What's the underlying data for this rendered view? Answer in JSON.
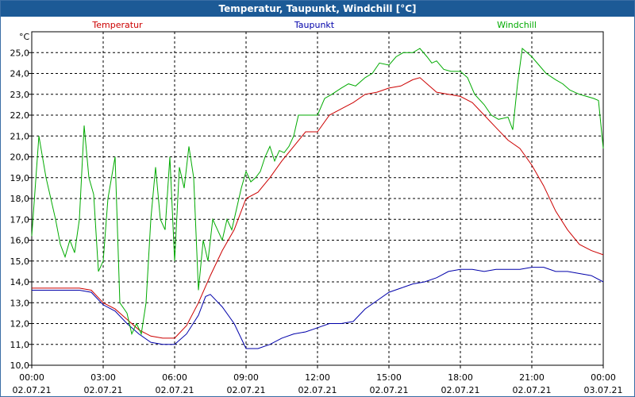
{
  "chart_data": {
    "type": "line",
    "title": "Temperatur, Taupunkt, Windchill [°C]",
    "ylabel": "°C",
    "ylim": [
      10.0,
      26.0
    ],
    "xlim": [
      0,
      24
    ],
    "yticks": [
      "10,0",
      "11,0",
      "12,0",
      "13,0",
      "14,0",
      "15,0",
      "16,0",
      "17,0",
      "18,0",
      "19,0",
      "20,0",
      "21,0",
      "22,0",
      "23,0",
      "24,0",
      "25,0"
    ],
    "xticks": [
      {
        "time": "00:00",
        "date": "02.07.21"
      },
      {
        "time": "03:00",
        "date": "02.07.21"
      },
      {
        "time": "06:00",
        "date": "02.07.21"
      },
      {
        "time": "09:00",
        "date": "02.07.21"
      },
      {
        "time": "12:00",
        "date": "02.07.21"
      },
      {
        "time": "15:00",
        "date": "02.07.21"
      },
      {
        "time": "18:00",
        "date": "02.07.21"
      },
      {
        "time": "21:00",
        "date": "02.07.21"
      },
      {
        "time": "00:00",
        "date": "03.07.21"
      }
    ],
    "grid": true,
    "series": [
      {
        "name": "Temperatur",
        "color": "#cc0000",
        "points": [
          [
            0,
            13.7
          ],
          [
            1,
            13.7
          ],
          [
            2,
            13.7
          ],
          [
            2.5,
            13.6
          ],
          [
            3,
            13.0
          ],
          [
            3.5,
            12.7
          ],
          [
            4,
            12.2
          ],
          [
            4.5,
            11.7
          ],
          [
            5,
            11.4
          ],
          [
            5.5,
            11.3
          ],
          [
            6,
            11.3
          ],
          [
            6.5,
            11.9
          ],
          [
            7,
            13.0
          ],
          [
            7.5,
            14.3
          ],
          [
            8,
            15.5
          ],
          [
            8.5,
            16.5
          ],
          [
            9,
            18.0
          ],
          [
            9.5,
            18.3
          ],
          [
            10,
            19.0
          ],
          [
            10.5,
            19.8
          ],
          [
            11,
            20.5
          ],
          [
            11.5,
            21.2
          ],
          [
            12,
            21.2
          ],
          [
            12.5,
            22.0
          ],
          [
            13,
            22.3
          ],
          [
            13.5,
            22.6
          ],
          [
            14,
            23.0
          ],
          [
            14.5,
            23.1
          ],
          [
            15,
            23.3
          ],
          [
            15.5,
            23.4
          ],
          [
            16,
            23.7
          ],
          [
            16.3,
            23.8
          ],
          [
            17,
            23.1
          ],
          [
            17.5,
            23.0
          ],
          [
            18,
            22.9
          ],
          [
            18.5,
            22.6
          ],
          [
            19,
            22.0
          ],
          [
            19.5,
            21.4
          ],
          [
            20,
            20.8
          ],
          [
            20.5,
            20.4
          ],
          [
            21,
            19.6
          ],
          [
            21.5,
            18.6
          ],
          [
            22,
            17.4
          ],
          [
            22.5,
            16.5
          ],
          [
            23,
            15.8
          ],
          [
            23.5,
            15.5
          ],
          [
            24,
            15.3
          ]
        ]
      },
      {
        "name": "Taupunkt",
        "color": "#0000aa",
        "points": [
          [
            0,
            13.6
          ],
          [
            1,
            13.6
          ],
          [
            2,
            13.6
          ],
          [
            2.5,
            13.5
          ],
          [
            3,
            12.9
          ],
          [
            3.5,
            12.6
          ],
          [
            4,
            12.0
          ],
          [
            4.5,
            11.5
          ],
          [
            5,
            11.1
          ],
          [
            5.5,
            11.0
          ],
          [
            6,
            11.0
          ],
          [
            6.5,
            11.5
          ],
          [
            7,
            12.4
          ],
          [
            7.3,
            13.3
          ],
          [
            7.5,
            13.4
          ],
          [
            8,
            12.8
          ],
          [
            8.5,
            12.0
          ],
          [
            9,
            10.8
          ],
          [
            9.5,
            10.8
          ],
          [
            10,
            11.0
          ],
          [
            10.5,
            11.3
          ],
          [
            11,
            11.5
          ],
          [
            11.5,
            11.6
          ],
          [
            12,
            11.8
          ],
          [
            12.5,
            12.0
          ],
          [
            13,
            12.0
          ],
          [
            13.5,
            12.1
          ],
          [
            14,
            12.7
          ],
          [
            14.5,
            13.1
          ],
          [
            15,
            13.5
          ],
          [
            15.5,
            13.7
          ],
          [
            16,
            13.9
          ],
          [
            16.5,
            14.0
          ],
          [
            17,
            14.2
          ],
          [
            17.5,
            14.5
          ],
          [
            18,
            14.6
          ],
          [
            18.5,
            14.6
          ],
          [
            19,
            14.5
          ],
          [
            19.5,
            14.6
          ],
          [
            20,
            14.6
          ],
          [
            20.5,
            14.6
          ],
          [
            21,
            14.7
          ],
          [
            21.5,
            14.7
          ],
          [
            22,
            14.5
          ],
          [
            22.5,
            14.5
          ],
          [
            23,
            14.4
          ],
          [
            23.5,
            14.3
          ],
          [
            24,
            14.0
          ]
        ]
      },
      {
        "name": "Windchill",
        "color": "#00aa00",
        "points": [
          [
            0,
            16.2
          ],
          [
            0.3,
            21.0
          ],
          [
            0.6,
            19.0
          ],
          [
            0.8,
            18.0
          ],
          [
            1,
            17.0
          ],
          [
            1.2,
            15.8
          ],
          [
            1.4,
            15.2
          ],
          [
            1.6,
            16.0
          ],
          [
            1.8,
            15.4
          ],
          [
            2,
            17.0
          ],
          [
            2.2,
            21.5
          ],
          [
            2.4,
            19.0
          ],
          [
            2.6,
            18.2
          ],
          [
            2.8,
            14.5
          ],
          [
            3,
            15.0
          ],
          [
            3.2,
            18.0
          ],
          [
            3.5,
            20.0
          ],
          [
            3.7,
            13.0
          ],
          [
            4,
            12.5
          ],
          [
            4.2,
            11.5
          ],
          [
            4.4,
            12.0
          ],
          [
            4.6,
            11.5
          ],
          [
            4.8,
            13.0
          ],
          [
            5,
            17.0
          ],
          [
            5.2,
            19.5
          ],
          [
            5.4,
            17.0
          ],
          [
            5.6,
            16.5
          ],
          [
            5.8,
            20.0
          ],
          [
            6,
            15.0
          ],
          [
            6.2,
            19.5
          ],
          [
            6.4,
            18.5
          ],
          [
            6.6,
            20.5
          ],
          [
            6.8,
            19.0
          ],
          [
            7,
            13.6
          ],
          [
            7.2,
            16.0
          ],
          [
            7.4,
            15.0
          ],
          [
            7.6,
            17.0
          ],
          [
            7.8,
            16.5
          ],
          [
            8,
            16.0
          ],
          [
            8.2,
            17.0
          ],
          [
            8.4,
            16.5
          ],
          [
            8.6,
            17.5
          ],
          [
            8.8,
            18.5
          ],
          [
            9,
            19.3
          ],
          [
            9.2,
            18.8
          ],
          [
            9.4,
            19.0
          ],
          [
            9.6,
            19.3
          ],
          [
            9.8,
            20.0
          ],
          [
            10,
            20.5
          ],
          [
            10.2,
            19.8
          ],
          [
            10.4,
            20.3
          ],
          [
            10.6,
            20.2
          ],
          [
            10.8,
            20.5
          ],
          [
            11,
            21.0
          ],
          [
            11.2,
            22.0
          ],
          [
            11.5,
            22.0
          ],
          [
            12,
            22.0
          ],
          [
            12.3,
            22.8
          ],
          [
            12.6,
            23.0
          ],
          [
            13,
            23.3
          ],
          [
            13.3,
            23.5
          ],
          [
            13.6,
            23.4
          ],
          [
            14,
            23.8
          ],
          [
            14.3,
            24.0
          ],
          [
            14.6,
            24.5
          ],
          [
            15,
            24.4
          ],
          [
            15.3,
            24.8
          ],
          [
            15.6,
            25.0
          ],
          [
            16,
            25.0
          ],
          [
            16.3,
            25.2
          ],
          [
            16.6,
            24.8
          ],
          [
            16.8,
            24.5
          ],
          [
            17,
            24.6
          ],
          [
            17.3,
            24.2
          ],
          [
            17.6,
            24.1
          ],
          [
            18,
            24.1
          ],
          [
            18.3,
            23.8
          ],
          [
            18.6,
            23.0
          ],
          [
            19,
            22.5
          ],
          [
            19.3,
            22.0
          ],
          [
            19.6,
            21.8
          ],
          [
            20,
            21.9
          ],
          [
            20.2,
            21.3
          ],
          [
            20.4,
            23.5
          ],
          [
            20.6,
            25.2
          ],
          [
            20.8,
            25.0
          ],
          [
            21,
            24.8
          ],
          [
            21.3,
            24.4
          ],
          [
            21.6,
            24.0
          ],
          [
            22,
            23.7
          ],
          [
            22.3,
            23.5
          ],
          [
            22.6,
            23.2
          ],
          [
            23,
            23.0
          ],
          [
            23.3,
            22.9
          ],
          [
            23.6,
            22.8
          ],
          [
            23.8,
            22.7
          ],
          [
            24,
            20.4
          ]
        ]
      }
    ]
  }
}
